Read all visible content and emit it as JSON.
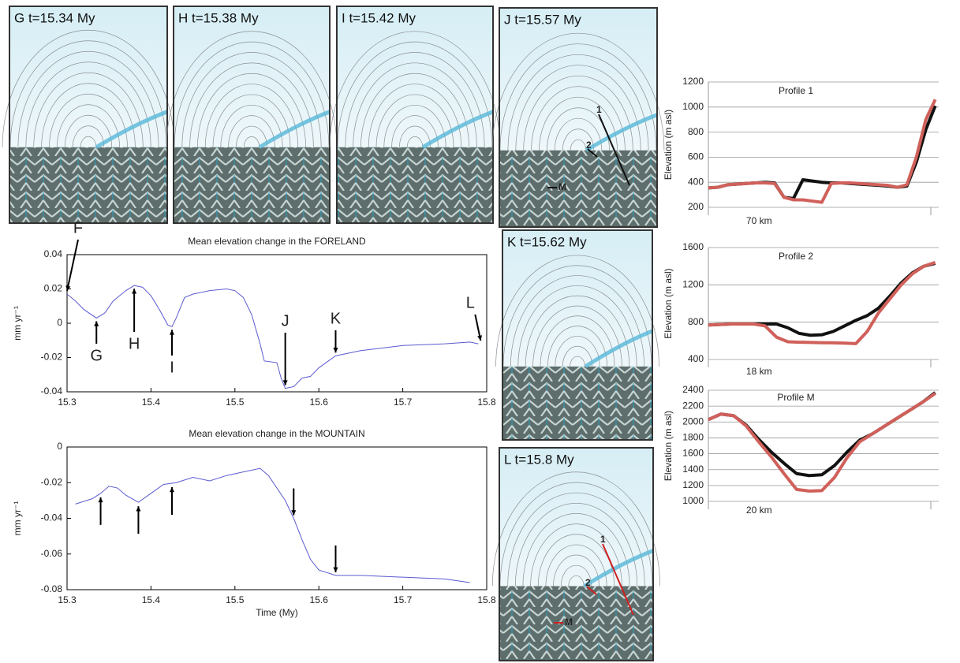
{
  "panels": [
    {
      "label": "G t=15.34 My"
    },
    {
      "label": "H t=15.38 My"
    },
    {
      "label": "I t=15.42 My"
    },
    {
      "label": "J t=15.57 My",
      "markers": [
        "1",
        "2",
        "M"
      ]
    },
    {
      "label": "K t=15.62 My"
    },
    {
      "label": "L t=15.8 My",
      "markers": [
        "1",
        "2",
        "M"
      ]
    }
  ],
  "chart_data": [
    {
      "type": "line",
      "title": "Mean elevation change in the FORELAND",
      "y_label": "mm yr⁻¹",
      "x": [
        15.3,
        15.31,
        15.32,
        15.335,
        15.345,
        15.355,
        15.37,
        15.38,
        15.39,
        15.4,
        15.41,
        15.42,
        15.425,
        15.43,
        15.44,
        15.45,
        15.47,
        15.49,
        15.5,
        15.51,
        15.52,
        15.53,
        15.535,
        15.55,
        15.555,
        15.56,
        15.57,
        15.58,
        15.59,
        15.6,
        15.62,
        15.65,
        15.7,
        15.75,
        15.78,
        15.79
      ],
      "series": [
        {
          "color": "#5a5ad0",
          "values": [
            0.017,
            0.013,
            0.008,
            0.003,
            0.006,
            0.013,
            0.019,
            0.022,
            0.021,
            0.016,
            0.008,
            -0.001,
            -0.002,
            0.003,
            0.015,
            0.017,
            0.019,
            0.02,
            0.019,
            0.015,
            0.005,
            -0.012,
            -0.022,
            -0.023,
            -0.032,
            -0.038,
            -0.037,
            -0.032,
            -0.031,
            -0.026,
            -0.019,
            -0.016,
            -0.013,
            -0.012,
            -0.011,
            -0.012
          ]
        }
      ],
      "xlim": [
        15.3,
        15.8
      ],
      "xticks": [
        15.3,
        15.4,
        15.5,
        15.6,
        15.7,
        15.8
      ],
      "ylim": [
        -0.04,
        0.04
      ],
      "yticks": [
        -0.04,
        -0.02,
        0,
        0.02,
        0.04
      ],
      "annotations": [
        {
          "text": "F",
          "x": 15.3
        },
        {
          "text": "G",
          "x": 15.335
        },
        {
          "text": "H",
          "x": 15.38
        },
        {
          "text": "I",
          "x": 15.425
        },
        {
          "text": "J",
          "x": 15.56
        },
        {
          "text": "K",
          "x": 15.62
        },
        {
          "text": "L",
          "x": 15.79
        }
      ]
    },
    {
      "type": "line",
      "title": "Mean elevation change in the MOUNTAIN",
      "y_label": "mm yr⁻¹",
      "x_label": "Time (My)",
      "x": [
        15.31,
        15.33,
        15.34,
        15.35,
        15.36,
        15.37,
        15.385,
        15.4,
        15.415,
        15.43,
        15.45,
        15.47,
        15.49,
        15.51,
        15.53,
        15.54,
        15.56,
        15.57,
        15.58,
        15.59,
        15.6,
        15.62,
        15.65,
        15.7,
        15.75,
        15.78
      ],
      "series": [
        {
          "color": "#5a5ad0",
          "values": [
            -0.032,
            -0.029,
            -0.026,
            -0.022,
            -0.023,
            -0.027,
            -0.031,
            -0.026,
            -0.021,
            -0.02,
            -0.017,
            -0.019,
            -0.016,
            -0.014,
            -0.012,
            -0.016,
            -0.03,
            -0.04,
            -0.052,
            -0.063,
            -0.069,
            -0.072,
            -0.072,
            -0.073,
            -0.074,
            -0.076
          ]
        }
      ],
      "xlim": [
        15.3,
        15.8
      ],
      "xticks": [
        15.3,
        15.4,
        15.5,
        15.6,
        15.7,
        15.8
      ],
      "ylim": [
        -0.08,
        0
      ],
      "yticks": [
        -0.08,
        -0.06,
        -0.04,
        -0.02,
        0
      ],
      "arrows": [
        15.34,
        15.385,
        15.425,
        15.57,
        15.62
      ]
    },
    {
      "type": "profile",
      "title": "Profile 1",
      "y_label": "Elevation (m asl)",
      "distance_label": "70 km",
      "series": [
        {
          "color": "#111111",
          "values": [
            355,
            360,
            380,
            385,
            390,
            395,
            400,
            395,
            280,
            270,
            420,
            410,
            400,
            395,
            395,
            390,
            385,
            380,
            375,
            370,
            360,
            370,
            560,
            820,
            1010
          ]
        },
        {
          "color": "#d0605a",
          "values": [
            355,
            360,
            380,
            385,
            390,
            395,
            395,
            390,
            280,
            260,
            260,
            250,
            240,
            390,
            395,
            395,
            390,
            385,
            380,
            375,
            360,
            380,
            600,
            900,
            1060
          ]
        }
      ],
      "ylim": [
        200,
        1200
      ],
      "yticks": [
        200,
        400,
        600,
        800,
        1000,
        1200
      ],
      "grid": true
    },
    {
      "type": "profile",
      "title": "Profile 2",
      "y_label": "Elevation (m asl)",
      "distance_label": "18 km",
      "series": [
        {
          "color": "#111111",
          "values": [
            770,
            775,
            780,
            780,
            780,
            780,
            780,
            740,
            680,
            660,
            665,
            700,
            760,
            820,
            870,
            950,
            1080,
            1220,
            1330,
            1400,
            1430
          ]
        },
        {
          "color": "#d0605a",
          "values": [
            770,
            775,
            780,
            780,
            780,
            760,
            640,
            590,
            585,
            583,
            580,
            578,
            575,
            570,
            700,
            900,
            1050,
            1200,
            1320,
            1400,
            1440
          ]
        }
      ],
      "ylim": [
        400,
        1600
      ],
      "yticks": [
        400,
        800,
        1200,
        1600
      ],
      "grid": true
    },
    {
      "type": "profile",
      "title": "Profile M",
      "y_label": "Elevation (m asl)",
      "distance_label": "20 km",
      "series": [
        {
          "color": "#111111",
          "values": [
            2030,
            2100,
            2080,
            1960,
            1780,
            1620,
            1480,
            1350,
            1325,
            1335,
            1450,
            1620,
            1770,
            1850,
            1950,
            2050,
            2150,
            2250,
            2370
          ]
        },
        {
          "color": "#d0605a",
          "values": [
            2030,
            2100,
            2080,
            1950,
            1750,
            1560,
            1350,
            1150,
            1130,
            1135,
            1300,
            1550,
            1750,
            1850,
            1950,
            2050,
            2150,
            2250,
            2360
          ]
        }
      ],
      "ylim": [
        1000,
        2400
      ],
      "yticks": [
        1000,
        1200,
        1400,
        1600,
        1800,
        2000,
        2200,
        2400
      ],
      "grid": true
    }
  ]
}
